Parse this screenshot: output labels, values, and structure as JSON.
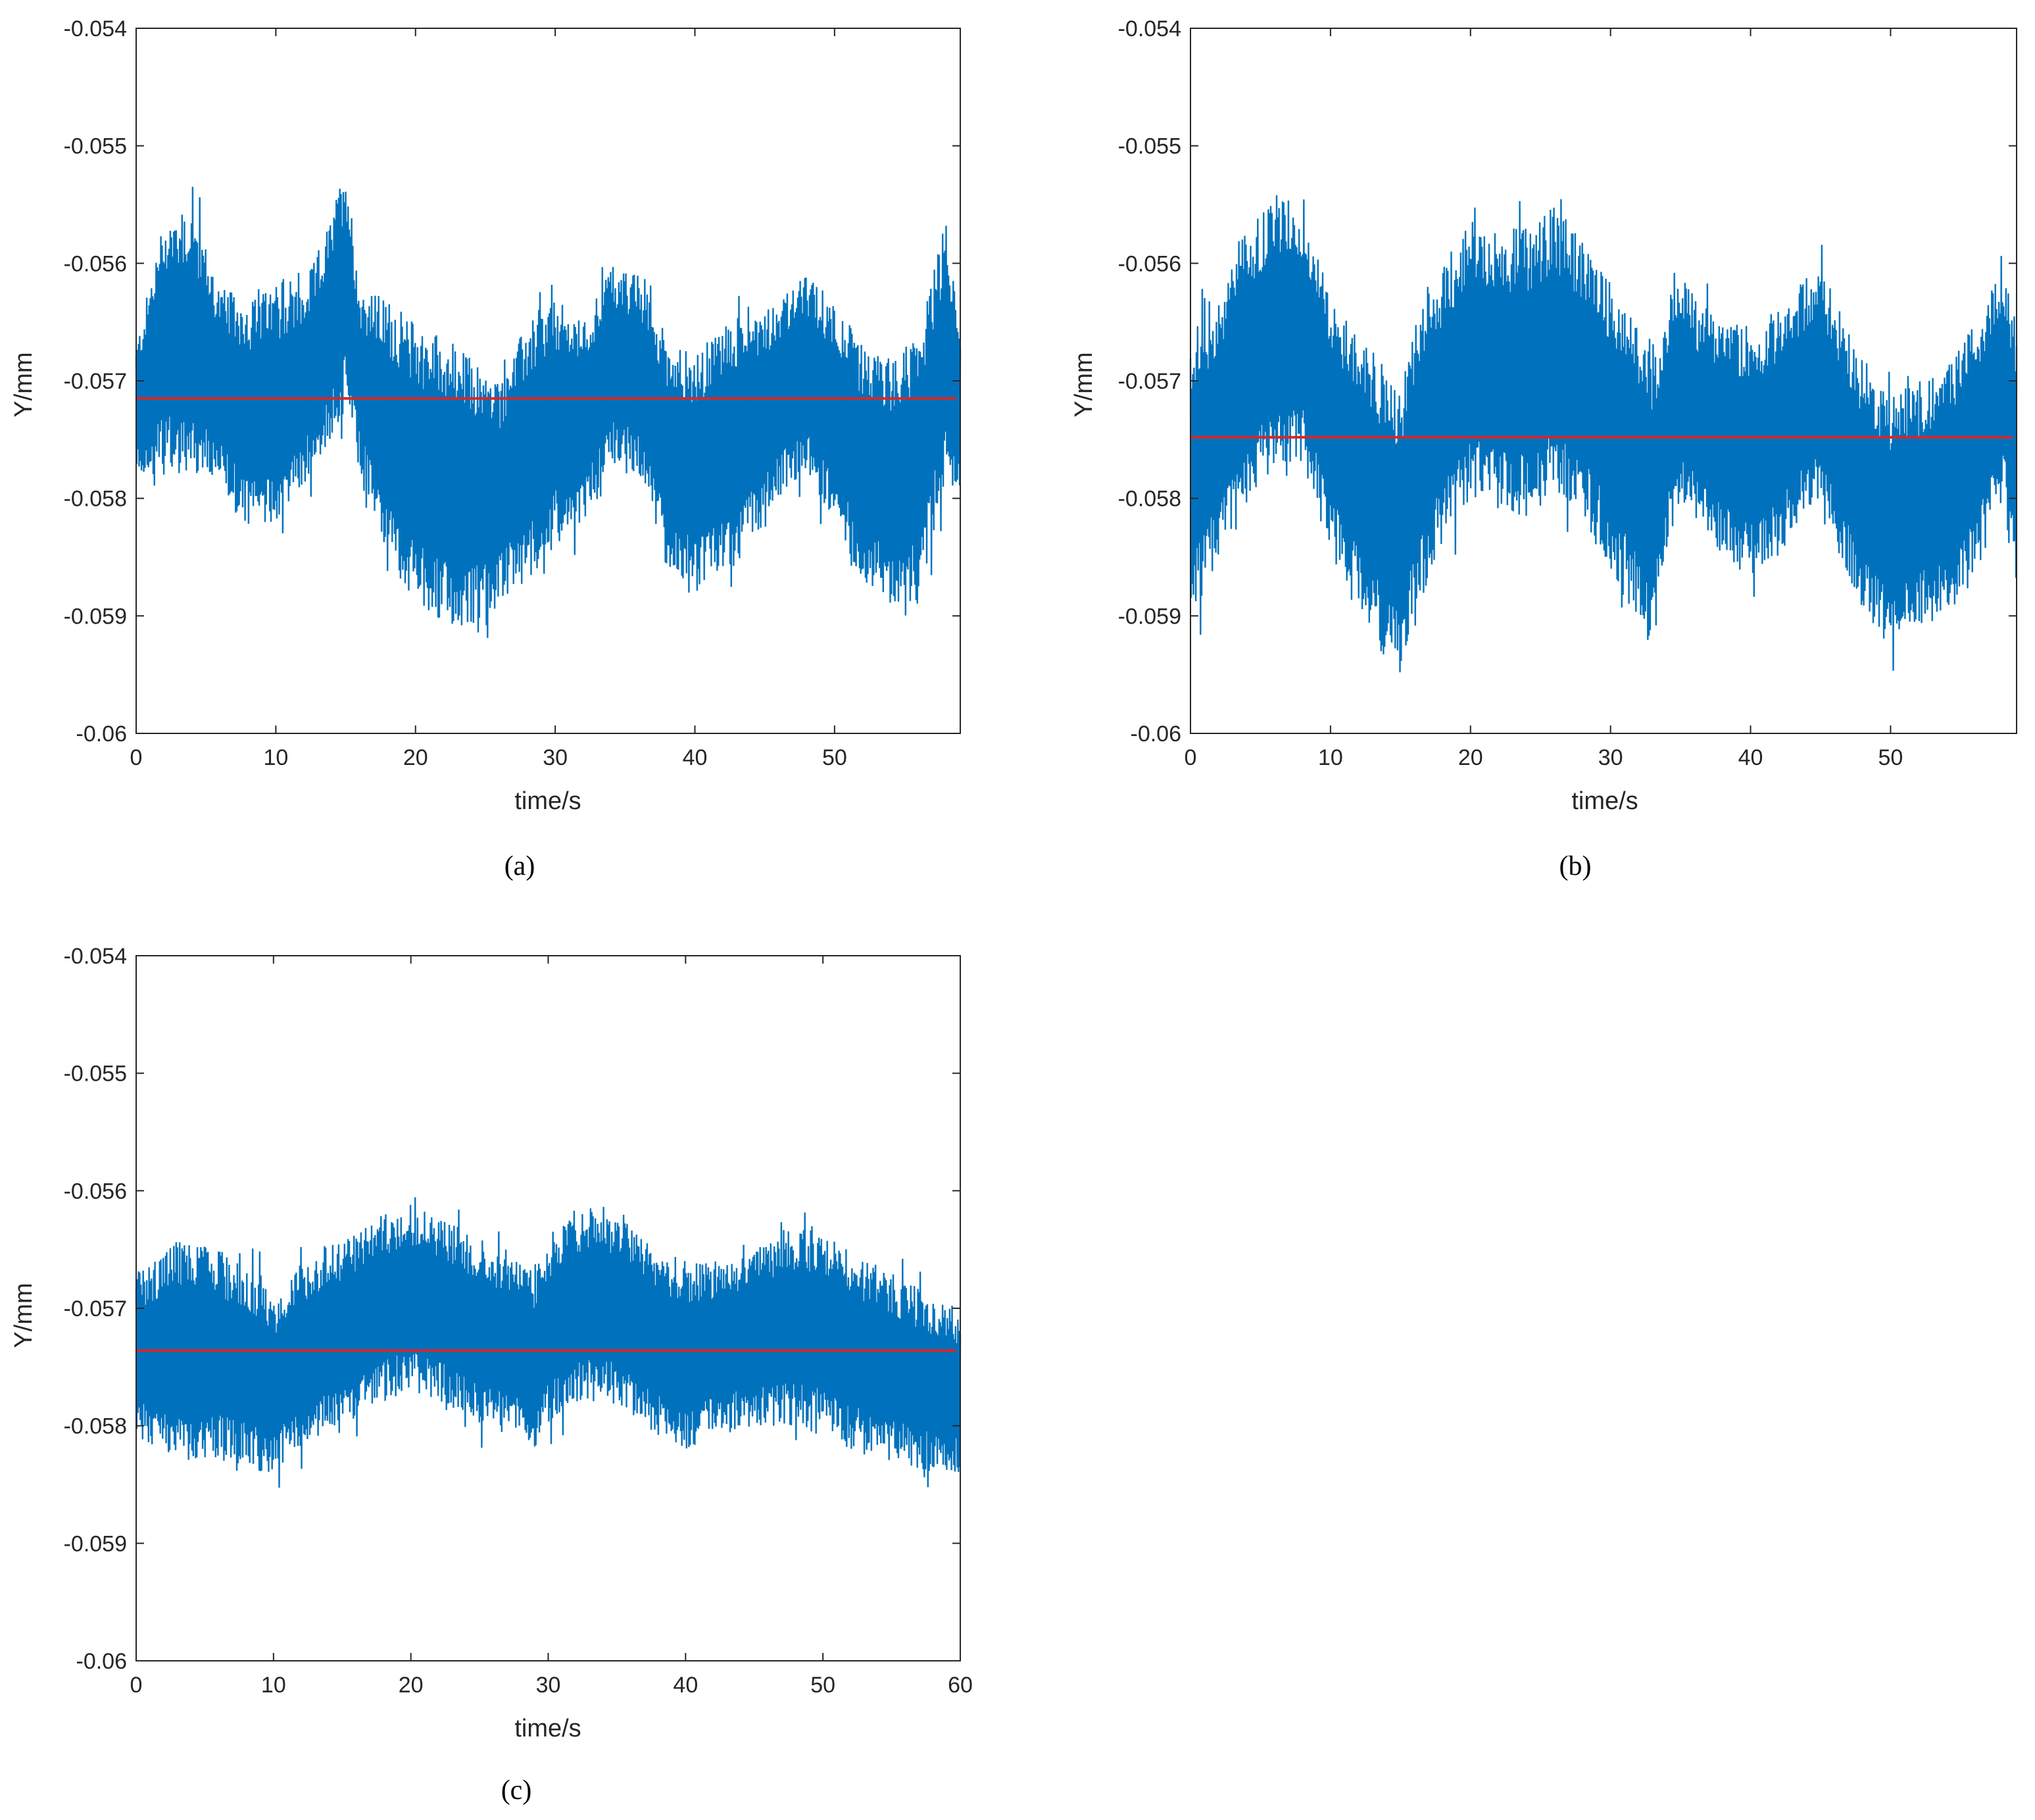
{
  "figure": {
    "panels": [
      {
        "panel_label": "(a)",
        "chart_data": {
          "type": "line",
          "xlabel": "time/s",
          "ylabel": "Y/mm",
          "xlim": [
            0,
            59
          ],
          "ylim": [
            -0.06,
            -0.054
          ],
          "xticks": [
            0,
            10,
            20,
            30,
            40,
            50
          ],
          "xtick_labels": [
            "0",
            "10",
            "20",
            "30",
            "40",
            "50"
          ],
          "yticks": [
            -0.06,
            -0.059,
            -0.058,
            -0.057,
            -0.056,
            -0.055,
            -0.054
          ],
          "ytick_labels": [
            "-0.06",
            "-0.059",
            "-0.058",
            "-0.057",
            "-0.056",
            "-0.055",
            "-0.054"
          ],
          "grid": false,
          "series_color": "#0072BD",
          "mean_color": "#D62728",
          "mean_value": -0.05715,
          "envelope": {
            "x": [
              0,
              2,
              4,
              6,
              8,
              10,
              12,
              14,
              15,
              16,
              18,
              20,
              22,
              24,
              26,
              28,
              30,
              32,
              34,
              36,
              38,
              40,
              42,
              44,
              46,
              48,
              50,
              52,
              54,
              56,
              58,
              59
            ],
            "upper": [
              -0.0567,
              -0.0556,
              -0.0555,
              -0.0562,
              -0.0563,
              -0.0562,
              -0.0562,
              -0.0556,
              -0.0551,
              -0.0562,
              -0.0563,
              -0.0565,
              -0.0566,
              -0.0568,
              -0.057,
              -0.0565,
              -0.0563,
              -0.0565,
              -0.056,
              -0.0561,
              -0.0566,
              -0.0568,
              -0.0565,
              -0.0564,
              -0.0563,
              -0.0561,
              -0.0563,
              -0.0567,
              -0.0568,
              -0.0566,
              -0.0556,
              -0.0566
            ],
            "lower": [
              -0.0578,
              -0.0578,
              -0.0578,
              -0.0579,
              -0.0583,
              -0.0582,
              -0.0579,
              -0.0575,
              -0.0572,
              -0.0578,
              -0.0585,
              -0.0589,
              -0.0591,
              -0.0591,
              -0.0589,
              -0.0587,
              -0.0584,
              -0.0582,
              -0.0577,
              -0.0578,
              -0.0586,
              -0.0588,
              -0.0587,
              -0.0584,
              -0.058,
              -0.0578,
              -0.0582,
              -0.0587,
              -0.0589,
              -0.0589,
              -0.0578,
              -0.058
            ]
          }
        }
      },
      {
        "panel_label": "(b)",
        "chart_data": {
          "type": "line",
          "xlabel": "time/s",
          "ylabel": "Y/mm",
          "xlim": [
            0,
            59
          ],
          "ylim": [
            -0.06,
            -0.054
          ],
          "xticks": [
            0,
            10,
            20,
            30,
            40,
            50
          ],
          "xtick_labels": [
            "0",
            "10",
            "20",
            "30",
            "40",
            "50"
          ],
          "yticks": [
            -0.06,
            -0.059,
            -0.058,
            -0.057,
            -0.056,
            -0.055,
            -0.054
          ],
          "ytick_labels": [
            "-0.06",
            "-0.059",
            "-0.058",
            "-0.057",
            "-0.056",
            "-0.055",
            "-0.054"
          ],
          "grid": false,
          "series_color": "#0072BD",
          "mean_color": "#D62728",
          "mean_value": -0.05748,
          "envelope": {
            "x": [
              0,
              2,
              4,
              6,
              8,
              10,
              12,
              14,
              15,
              16,
              18,
              20,
              22,
              24,
              26,
              28,
              30,
              32,
              33,
              34,
              35,
              36,
              38,
              40,
              42,
              44,
              45,
              46,
              48,
              50,
              52,
              54,
              56,
              58,
              59
            ],
            "upper": [
              -0.0566,
              -0.0563,
              -0.0557,
              -0.0554,
              -0.0555,
              -0.0563,
              -0.0566,
              -0.0569,
              -0.0571,
              -0.0565,
              -0.056,
              -0.0556,
              -0.0557,
              -0.0557,
              -0.0555,
              -0.0558,
              -0.0561,
              -0.0565,
              -0.0568,
              -0.0563,
              -0.056,
              -0.0563,
              -0.0565,
              -0.0565,
              -0.0564,
              -0.0561,
              -0.056,
              -0.0563,
              -0.0568,
              -0.0571,
              -0.057,
              -0.0569,
              -0.0565,
              -0.0559,
              -0.0565
            ],
            "lower": [
              -0.0591,
              -0.0585,
              -0.058,
              -0.0578,
              -0.0577,
              -0.0585,
              -0.0589,
              -0.0594,
              -0.0595,
              -0.059,
              -0.0584,
              -0.058,
              -0.0581,
              -0.0582,
              -0.058,
              -0.0582,
              -0.0586,
              -0.0591,
              -0.0593,
              -0.0585,
              -0.058,
              -0.0582,
              -0.0585,
              -0.0587,
              -0.0585,
              -0.0581,
              -0.058,
              -0.0584,
              -0.059,
              -0.0593,
              -0.0591,
              -0.059,
              -0.0587,
              -0.058,
              -0.0588
            ]
          }
        }
      },
      {
        "panel_label": "(c)",
        "chart_data": {
          "type": "line",
          "xlabel": "time/s",
          "ylabel": "Y/mm",
          "xlim": [
            0,
            60
          ],
          "ylim": [
            -0.06,
            -0.054
          ],
          "xticks": [
            0,
            10,
            20,
            30,
            40,
            50,
            60
          ],
          "xtick_labels": [
            "0",
            "10",
            "20",
            "30",
            "40",
            "50",
            "60"
          ],
          "yticks": [
            -0.06,
            -0.059,
            -0.058,
            -0.057,
            -0.056,
            -0.055,
            -0.054
          ],
          "ytick_labels": [
            "-0.06",
            "-0.059",
            "-0.058",
            "-0.057",
            "-0.056",
            "-0.055",
            "-0.054"
          ],
          "grid": false,
          "series_color": "#0072BD",
          "mean_color": "#D62728",
          "mean_value": -0.05736,
          "envelope": {
            "x": [
              0,
              3,
              6,
              9,
              10,
              12,
              15,
              18,
              20,
              22,
              25,
              28,
              29,
              30,
              32,
              34,
              36,
              38,
              40,
              42,
              45,
              48,
              50,
              52,
              55,
              58,
              60
            ],
            "upper": [
              -0.0567,
              -0.0564,
              -0.0565,
              -0.0567,
              -0.0569,
              -0.0566,
              -0.0564,
              -0.0562,
              -0.0561,
              -0.0562,
              -0.0564,
              -0.0566,
              -0.0567,
              -0.0564,
              -0.0562,
              -0.0561,
              -0.0563,
              -0.0565,
              -0.0566,
              -0.0566,
              -0.0565,
              -0.0563,
              -0.0563,
              -0.0565,
              -0.0567,
              -0.0569,
              -0.057
            ],
            "lower": [
              -0.0581,
              -0.0583,
              -0.0583,
              -0.0584,
              -0.0584,
              -0.0582,
              -0.058,
              -0.0578,
              -0.0577,
              -0.0578,
              -0.058,
              -0.0581,
              -0.0582,
              -0.058,
              -0.0578,
              -0.0578,
              -0.0579,
              -0.0581,
              -0.0582,
              -0.0581,
              -0.058,
              -0.058,
              -0.0581,
              -0.0582,
              -0.0583,
              -0.0584,
              -0.0584
            ]
          }
        }
      }
    ]
  }
}
